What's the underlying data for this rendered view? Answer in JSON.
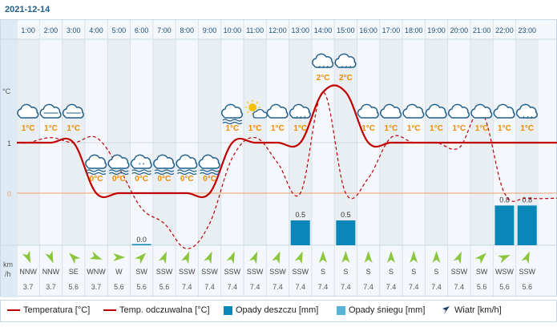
{
  "date": "2021-12-14",
  "colors": {
    "temperature": "#c00000",
    "precip_bar": "#0a87b8",
    "snow_bar": "#55b3d6",
    "hour_text": "#1f4f75",
    "temp_label": "#f08a00",
    "zero_line": "#f2a06a",
    "wind_arrow": "#8cc63f",
    "cloud_stroke": "#1f5f8c"
  },
  "labels": {
    "y_unit": "°C",
    "wind_unit_1": "km",
    "wind_unit_2": "/h"
  },
  "legend": {
    "temperature": "Temperatura [°C]",
    "feels_like": "Temp. odczuwalna [°C]",
    "rain": "Opady deszczu [mm]",
    "snow": "Opady śniegu [mm]",
    "wind": "Wiatr [km/h]"
  },
  "chart_data": {
    "type": "line",
    "hours": [
      "1:00",
      "2:00",
      "3:00",
      "4:00",
      "5:00",
      "6:00",
      "7:00",
      "8:00",
      "9:00",
      "10:00",
      "11:00",
      "12:00",
      "13:00",
      "14:00",
      "15:00",
      "16:00",
      "17:00",
      "18:00",
      "19:00",
      "20:00",
      "21:00",
      "22:00",
      "23:00"
    ],
    "y_ticks": [
      "1",
      "0"
    ],
    "ylim": [
      -1.2,
      2.3
    ],
    "series": [
      {
        "name": "Temperatura [°C]",
        "style": "solid",
        "values": [
          1,
          1,
          1,
          0,
          0,
          0,
          0,
          0,
          0,
          1,
          1,
          1,
          1,
          2,
          2,
          1,
          1,
          1,
          1,
          1,
          1,
          1,
          1
        ]
      },
      {
        "name": "Temp. odczuwalna [°C]",
        "style": "dashed",
        "values": [
          1,
          1.1,
          1,
          1.1,
          0.5,
          -0.3,
          -0.6,
          -1.1,
          -0.6,
          0.7,
          1.1,
          0.6,
          0,
          2,
          0,
          0.3,
          1.1,
          1,
          1,
          0.9,
          1.6,
          0,
          -0.1
        ]
      }
    ],
    "temp_labels": [
      "1°C",
      "1°C",
      "1°C",
      "0°C",
      "0°C",
      "0°C",
      "0°C",
      "0°C",
      "0°C",
      "1°C",
      "1°C",
      "1°C",
      "1°C",
      "2°C",
      "2°C",
      "1°C",
      "1°C",
      "1°C",
      "1°C",
      "1°C",
      "1°C",
      "1°C",
      "1°C"
    ],
    "weather_icons": [
      "cloud",
      "cloud-heavy",
      "cloud-heavy",
      "cloud-fog",
      "cloud-fog",
      "cloud-snow",
      "cloud-fog",
      "cloud-fog",
      "cloud-fog",
      "cloud-fog",
      "sun-cloud",
      "cloud",
      "cloud-drizzle",
      "cloud-rain",
      "cloud-rain",
      "cloud",
      "cloud",
      "cloud",
      "cloud",
      "cloud",
      "cloud",
      "cloud",
      "cloud-drizzle"
    ],
    "rain_mm": [
      0,
      0,
      0,
      0,
      0,
      0,
      0,
      0,
      0,
      0,
      0,
      0,
      0.5,
      0,
      0.5,
      0,
      0,
      0,
      0,
      0,
      0,
      0.8,
      0.8
    ],
    "rain_labels": [
      "",
      "",
      "",
      "",
      "",
      "0.0",
      "",
      "",
      "",
      "",
      "",
      "",
      "0.5",
      "",
      "0.5",
      "",
      "",
      "",
      "",
      "",
      "",
      "0.8",
      "0.8"
    ],
    "snow_mm": [
      0,
      0,
      0,
      0,
      0,
      0,
      0,
      0,
      0,
      0,
      0,
      0,
      0,
      0,
      0,
      0,
      0,
      0,
      0,
      0,
      0,
      0,
      0
    ],
    "wind_dir": [
      "NNW",
      "NNW",
      "SE",
      "WNW",
      "W",
      "SW",
      "SSW",
      "SSW",
      "SSW",
      "SSW",
      "SSW",
      "SSW",
      "SSW",
      "S",
      "S",
      "S",
      "S",
      "S",
      "S",
      "SSW",
      "SW",
      "WSW",
      "SSW"
    ],
    "wind_speed": [
      "3.7",
      "3.7",
      "5.6",
      "3.7",
      "5.6",
      "5.6",
      "5.6",
      "7.4",
      "7.4",
      "7.4",
      "7.4",
      "7.4",
      "7.4",
      "7.4",
      "7.4",
      "7.4",
      "7.4",
      "7.4",
      "7.4",
      "7.4",
      "5.6",
      "5.6",
      "5.6"
    ]
  }
}
